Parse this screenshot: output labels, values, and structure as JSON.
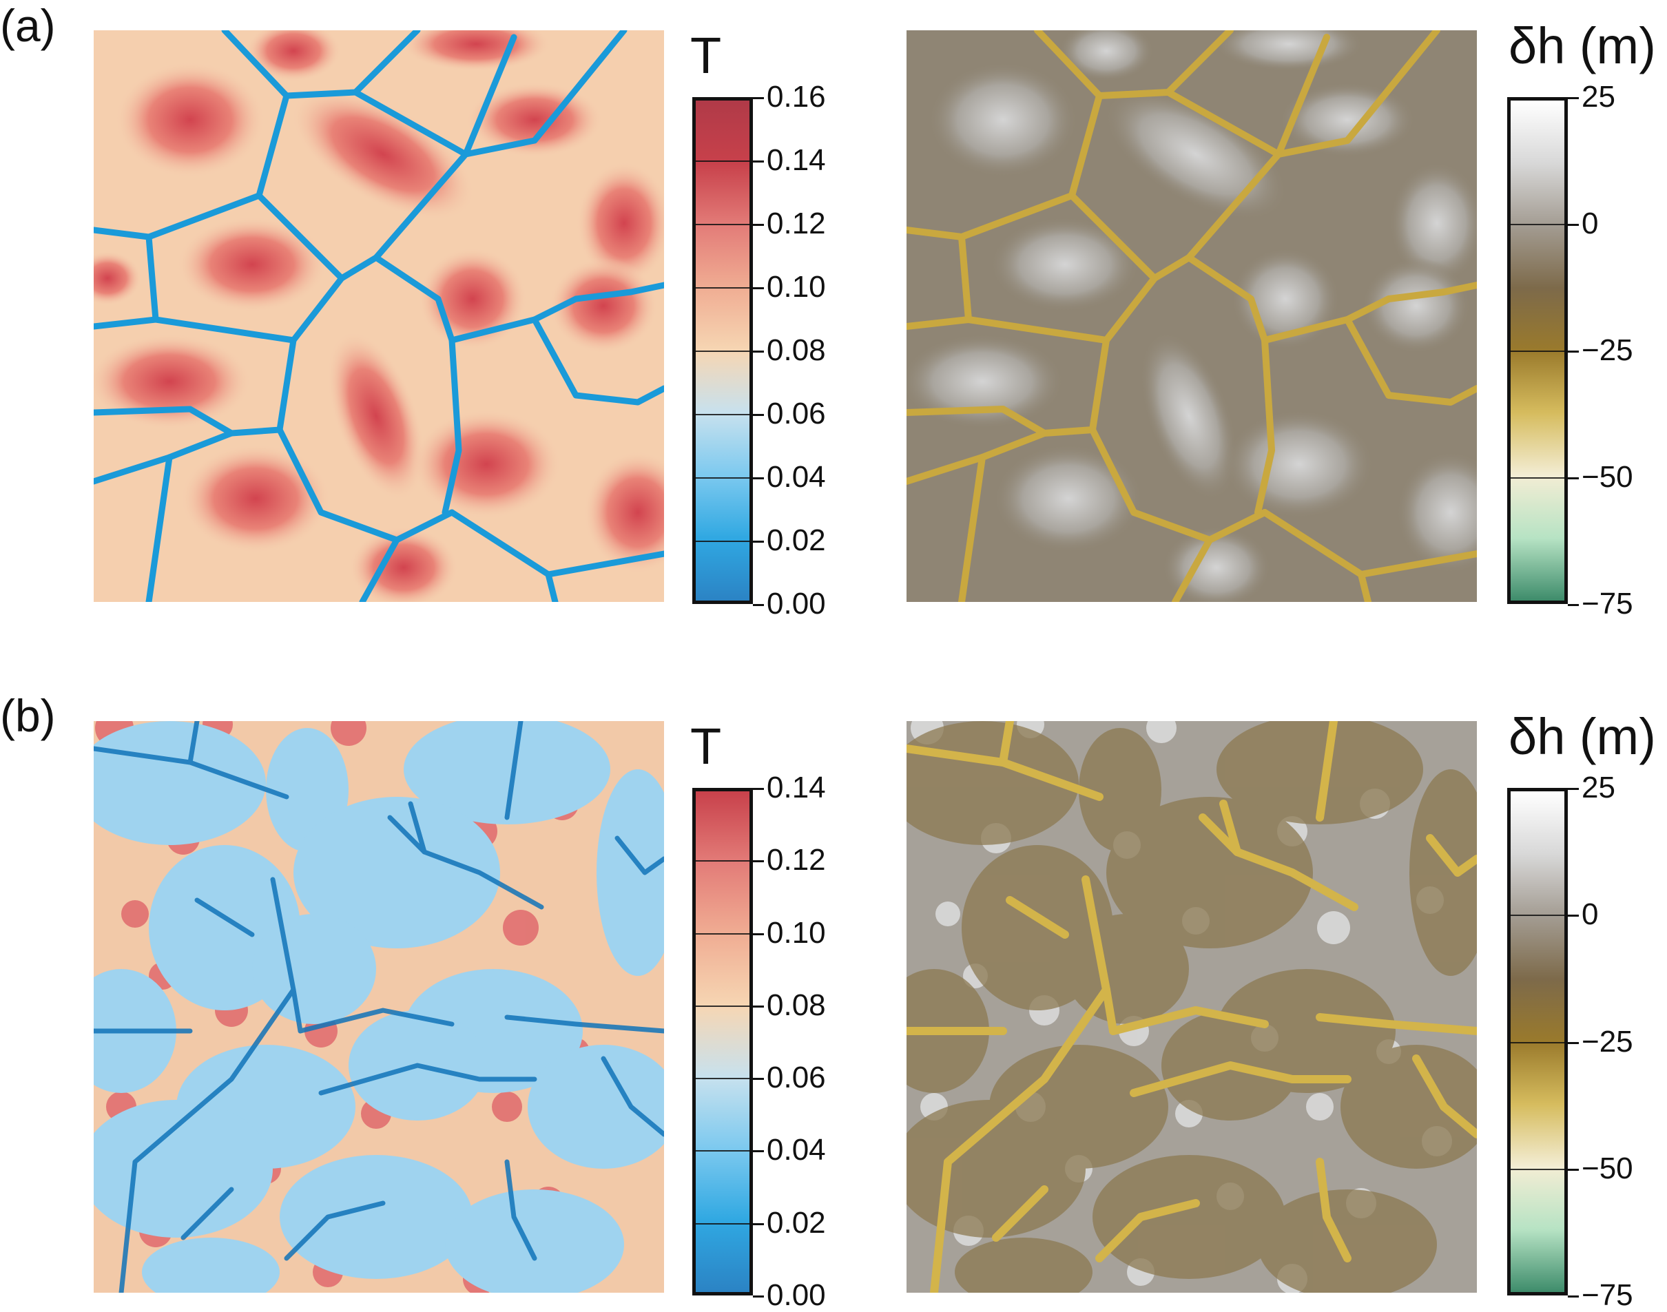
{
  "panels": [
    {
      "label": "(a)",
      "temperature": {
        "title": "T",
        "ticks": [
          "0.00",
          "0.02",
          "0.04",
          "0.06",
          "0.08",
          "0.10",
          "0.12",
          "0.14",
          "0.16"
        ],
        "stops": [
          "#2b83c4",
          "#30a8e2",
          "#7cc9ef",
          "#c7e1ee",
          "#f6d6b3",
          "#f0ad93",
          "#e37c78",
          "#c8414b",
          "#b03a48"
        ]
      },
      "height": {
        "title": "δh (m)",
        "ticks": [
          "−75",
          "−50",
          "−25",
          "0",
          "25"
        ],
        "stops": [
          "#3e8c6b",
          "#b7e3c4",
          "#f3edd4",
          "#d6bc5e",
          "#9a7a2c",
          "#7d6a4a",
          "#a39c92",
          "#d8d8d8",
          "#ffffff"
        ]
      }
    },
    {
      "label": "(b)",
      "temperature": {
        "title": "T",
        "ticks": [
          "0.00",
          "0.02",
          "0.04",
          "0.06",
          "0.08",
          "0.10",
          "0.12",
          "0.14"
        ],
        "stops": [
          "#2b83c4",
          "#30a8e2",
          "#7cc9ef",
          "#c7e1ee",
          "#f6d6b3",
          "#f0ad93",
          "#e37c78",
          "#c8414b"
        ]
      },
      "height": {
        "title": "δh (m)",
        "ticks": [
          "−75",
          "−50",
          "−25",
          "0",
          "25"
        ],
        "stops": [
          "#3e8c6b",
          "#b7e3c4",
          "#f3edd4",
          "#d6bc5e",
          "#9a7a2c",
          "#7d6a4a",
          "#a39c92",
          "#d8d8d8",
          "#ffffff"
        ]
      }
    }
  ]
}
